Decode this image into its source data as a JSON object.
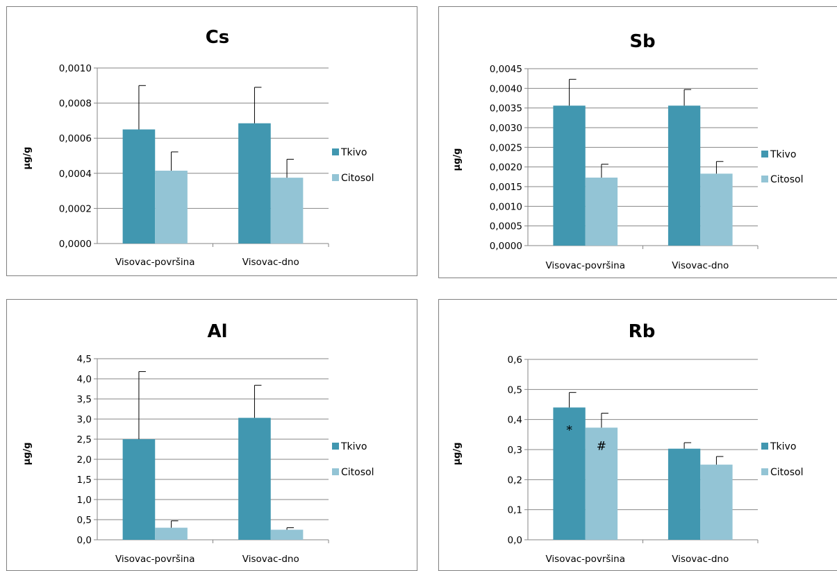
{
  "chart_data": [
    {
      "type": "bar",
      "title": "Cs",
      "ylabel": "µg/g",
      "categories": [
        "Visovac-površina",
        "Visovac-dno"
      ],
      "series": [
        {
          "name": "Tkivo",
          "values": [
            0.00065,
            0.000685
          ],
          "errors": [
            0.00025,
            0.000205
          ],
          "color": "#4197b0"
        },
        {
          "name": "Citosol",
          "values": [
            0.000415,
            0.000375
          ],
          "errors": [
            0.000107,
            0.000105
          ],
          "color": "#93c4d5"
        }
      ],
      "ylim": [
        0,
        0.001
      ],
      "yticks": [
        "0,0000",
        "0,0002",
        "0,0004",
        "0,0006",
        "0,0008",
        "0,0010"
      ],
      "grid": true,
      "legend": "right",
      "annotations": []
    },
    {
      "type": "bar",
      "title": "Sb",
      "ylabel": "µg/g",
      "categories": [
        "Visovac-površina",
        "Visovac-dno"
      ],
      "series": [
        {
          "name": "Tkivo",
          "values": [
            0.00356,
            0.00356
          ],
          "errors": [
            0.00067,
            0.00041
          ],
          "color": "#4197b0"
        },
        {
          "name": "Citosol",
          "values": [
            0.00173,
            0.00183
          ],
          "errors": [
            0.00034,
            0.00031
          ],
          "color": "#93c4d5"
        }
      ],
      "ylim": [
        0,
        0.0045
      ],
      "yticks": [
        "0,0000",
        "0,0005",
        "0,0010",
        "0,0015",
        "0,0020",
        "0,0025",
        "0,0030",
        "0,0035",
        "0,0040",
        "0,0045"
      ],
      "grid": true,
      "legend": "right",
      "annotations": []
    },
    {
      "type": "bar",
      "title": "Al",
      "ylabel": "µg/g",
      "categories": [
        "Visovac-površina",
        "Visovac-dno"
      ],
      "series": [
        {
          "name": "Tkivo",
          "values": [
            2.5,
            3.03
          ],
          "errors": [
            1.68,
            0.81
          ],
          "color": "#4197b0"
        },
        {
          "name": "Citosol",
          "values": [
            0.3,
            0.25
          ],
          "errors": [
            0.17,
            0.05
          ],
          "color": "#93c4d5"
        }
      ],
      "ylim": [
        0,
        4.5
      ],
      "yticks": [
        "0,0",
        "0,5",
        "1,0",
        "1,5",
        "2,0",
        "2,5",
        "3,0",
        "3,5",
        "4,0",
        "4,5"
      ],
      "grid": true,
      "legend": "right",
      "annotations": []
    },
    {
      "type": "bar",
      "title": "Rb",
      "ylabel": "µg/g",
      "categories": [
        "Visovac-površina",
        "Visovac-dno"
      ],
      "series": [
        {
          "name": "Tkivo",
          "values": [
            0.44,
            0.303
          ],
          "errors": [
            0.05,
            0.02
          ],
          "color": "#4197b0"
        },
        {
          "name": "Citosol",
          "values": [
            0.373,
            0.25
          ],
          "errors": [
            0.048,
            0.027
          ],
          "color": "#93c4d5"
        }
      ],
      "ylim": [
        0,
        0.6
      ],
      "yticks": [
        "0,0",
        "0,1",
        "0,2",
        "0,3",
        "0,4",
        "0,5",
        "0,6"
      ],
      "grid": true,
      "legend": "right",
      "annotations": [
        {
          "text": "*",
          "series": 0,
          "category": 0
        },
        {
          "text": "#",
          "series": 1,
          "category": 0
        }
      ]
    }
  ]
}
